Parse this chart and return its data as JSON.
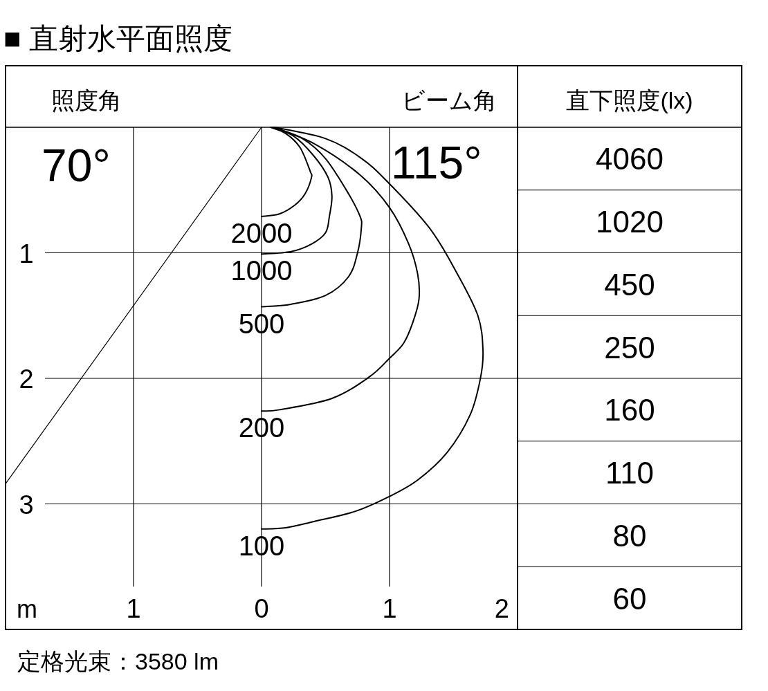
{
  "chart_data": [
    {
      "type": "line",
      "title": "■ 直射水平面照度",
      "xlabel": "m",
      "annotations": [
        "照度角",
        "70°",
        "ビーム角",
        "115°",
        "定格光束：3580 lm"
      ],
      "xlim": [
        -2,
        2
      ],
      "ylim": [
        4,
        0
      ],
      "xticks": [
        {
          "value": -1,
          "label": "1"
        },
        0,
        1,
        2
      ],
      "yticks": [
        1,
        2,
        3
      ],
      "grid": true,
      "line_style": "solid",
      "series": [
        {
          "name": "2000",
          "color": "#000000",
          "x": [
            0.07,
            0.19,
            0.3,
            0.38,
            0.39,
            0.34,
            0.26,
            0.14,
            0.0
          ],
          "values": [
            0.0,
            0.05,
            0.16,
            0.35,
            0.4,
            0.53,
            0.62,
            0.69,
            0.71
          ]
        },
        {
          "name": "1000",
          "color": "#000000",
          "x": [
            0.08,
            0.25,
            0.41,
            0.52,
            0.55,
            0.53,
            0.5,
            0.39,
            0.23,
            0.0
          ],
          "values": [
            0.0,
            0.07,
            0.23,
            0.4,
            0.55,
            0.71,
            0.84,
            0.93,
            0.99,
            1.01
          ]
        },
        {
          "name": "500",
          "color": "#000000",
          "x": [
            0.09,
            0.32,
            0.5,
            0.68,
            0.77,
            0.78,
            0.75,
            0.68,
            0.5,
            0.23,
            0.0
          ],
          "values": [
            0.0,
            0.09,
            0.25,
            0.53,
            0.71,
            0.8,
            1.0,
            1.19,
            1.34,
            1.41,
            1.43
          ]
        },
        {
          "name": "200",
          "color": "#000000",
          "x": [
            0.09,
            0.41,
            0.77,
            1.0,
            1.15,
            1.22,
            1.23,
            1.18,
            1.11,
            1.0,
            0.84,
            0.55,
            0.14,
            0.0
          ],
          "values": [
            0.0,
            0.13,
            0.38,
            0.64,
            0.93,
            1.17,
            1.37,
            1.56,
            1.72,
            1.84,
            1.99,
            2.16,
            2.25,
            2.26
          ]
        },
        {
          "name": "100",
          "color": "#000000",
          "x": [
            0.1,
            0.5,
            0.77,
            0.98,
            1.31,
            1.52,
            1.69,
            1.73,
            1.71,
            1.63,
            1.45,
            1.22,
            1.0,
            0.73,
            0.41,
            0.19,
            0.0
          ],
          "values": [
            0.0,
            0.09,
            0.24,
            0.43,
            0.8,
            1.15,
            1.5,
            1.78,
            2.0,
            2.29,
            2.59,
            2.81,
            2.94,
            3.06,
            3.14,
            3.19,
            3.2
          ]
        },
        {
          "color": "#000000",
          "x": [
            0,
            -2
          ],
          "values": [
            0,
            2.84
          ]
        }
      ]
    },
    {
      "type": "other",
      "title": "直下照度(lx)",
      "categories": [
        null,
        null,
        null,
        null,
        null,
        null,
        null,
        null
      ],
      "values": [
        4060,
        1020,
        450,
        250,
        160,
        110,
        80,
        60
      ],
      "data_labels": true
    }
  ]
}
